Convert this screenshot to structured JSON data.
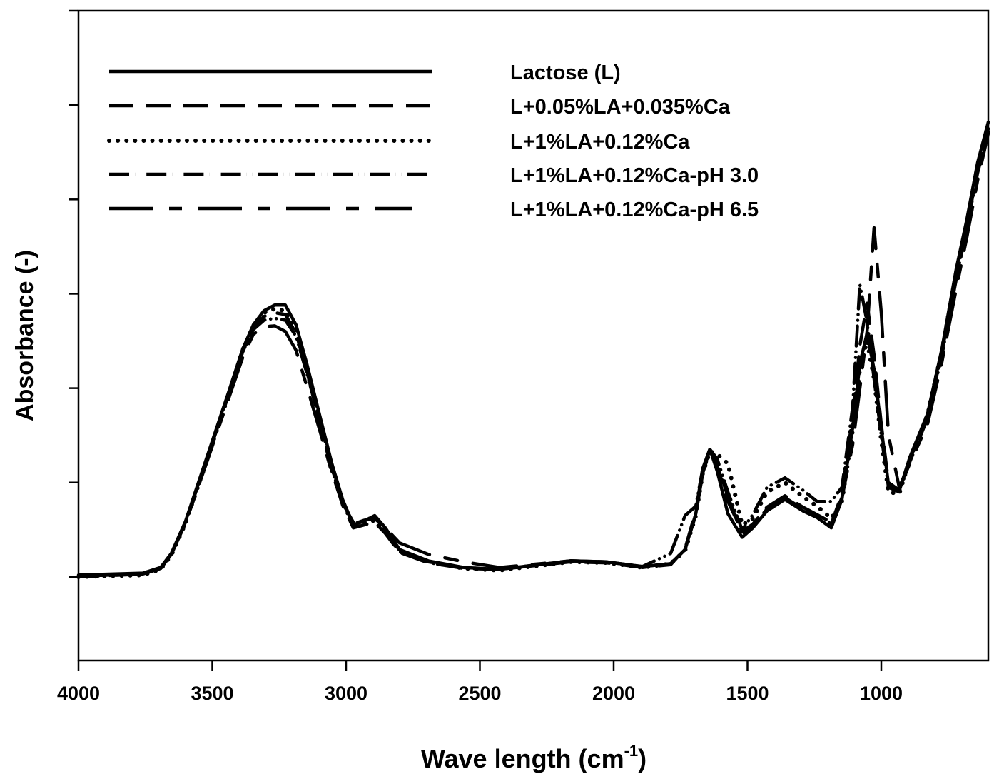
{
  "chart_data": {
    "type": "line",
    "title": "",
    "xlabel_pre": "Wave length (cm",
    "xlabel_sup": "-1",
    "xlabel_post": ")",
    "ylabel": "Absorbance (-)",
    "xlim": [
      4000,
      600
    ],
    "ylim": [
      -0.886,
      6.0
    ],
    "x_reversed": true,
    "x_ticks": [
      4000,
      3500,
      3000,
      2500,
      2000,
      1500,
      1000
    ],
    "x_tick_labels": [
      "4000",
      "3500",
      "3000",
      "2500",
      "2000",
      "1500",
      "1000"
    ],
    "y_ticks": [
      0,
      1,
      2,
      3,
      4,
      5,
      6
    ],
    "y_tick_labels_shown": false,
    "grid": false,
    "legend_position": "top-left",
    "line_color": "#000000",
    "x": [
      4000,
      3760,
      3693,
      3653,
      3600,
      3520,
      3440,
      3387,
      3347,
      3307,
      3267,
      3227,
      3187,
      3147,
      3093,
      3053,
      3013,
      2973,
      2933,
      2893,
      2853,
      2800,
      2693,
      2560,
      2427,
      2160,
      2027,
      1893,
      1787,
      1733,
      1693,
      1667,
      1640,
      1613,
      1573,
      1520,
      1480,
      1427,
      1360,
      1293,
      1240,
      1187,
      1147,
      1107,
      1080,
      1053,
      1027,
      1000,
      973,
      933,
      893,
      827,
      773,
      720,
      680,
      640,
      600
    ],
    "series": [
      {
        "name": "Lactose (L)",
        "style": "solid",
        "values": [
          0.02,
          0.04,
          0.1,
          0.25,
          0.59,
          1.27,
          1.95,
          2.41,
          2.67,
          2.82,
          2.88,
          2.88,
          2.67,
          2.26,
          1.65,
          1.2,
          0.82,
          0.55,
          0.59,
          0.65,
          0.52,
          0.29,
          0.17,
          0.1,
          0.08,
          0.17,
          0.16,
          0.11,
          0.14,
          0.29,
          0.67,
          1.12,
          1.35,
          1.12,
          0.67,
          0.42,
          0.52,
          0.7,
          0.82,
          0.7,
          0.63,
          0.52,
          0.82,
          1.58,
          2.26,
          2.58,
          2.2,
          1.58,
          0.98,
          0.91,
          1.27,
          1.73,
          2.42,
          3.26,
          3.79,
          4.39,
          4.82
        ]
      },
      {
        "name": "L+0.05%LA+0.035%Ca",
        "style": "dashed",
        "values": [
          0.01,
          0.03,
          0.09,
          0.24,
          0.58,
          1.25,
          1.92,
          2.38,
          2.63,
          2.76,
          2.8,
          2.78,
          2.58,
          2.18,
          1.58,
          1.12,
          0.76,
          0.52,
          0.55,
          0.58,
          0.46,
          0.26,
          0.15,
          0.09,
          0.08,
          0.16,
          0.15,
          0.1,
          0.13,
          0.3,
          0.7,
          1.15,
          1.36,
          1.18,
          0.8,
          0.48,
          0.56,
          0.74,
          0.86,
          0.74,
          0.66,
          0.56,
          0.88,
          1.7,
          2.45,
          2.9,
          2.35,
          1.62,
          1.0,
          0.92,
          1.25,
          1.7,
          2.38,
          3.2,
          3.72,
          4.3,
          4.75
        ]
      },
      {
        "name": "L+1%LA+0.12%Ca",
        "style": "dotted",
        "values": [
          0.0,
          0.02,
          0.08,
          0.23,
          0.57,
          1.24,
          1.92,
          2.4,
          2.66,
          2.8,
          2.84,
          2.82,
          2.62,
          2.2,
          1.62,
          1.16,
          0.8,
          0.54,
          0.57,
          0.6,
          0.48,
          0.27,
          0.16,
          0.09,
          0.07,
          0.16,
          0.15,
          0.1,
          0.14,
          0.28,
          0.65,
          1.1,
          1.33,
          1.3,
          1.2,
          0.55,
          0.62,
          0.9,
          1.0,
          0.85,
          0.75,
          0.62,
          0.8,
          1.55,
          2.2,
          2.5,
          2.1,
          1.45,
          0.9,
          0.88,
          1.25,
          1.72,
          2.4,
          3.22,
          3.75,
          4.35,
          4.8
        ]
      },
      {
        "name": "L+1%LA+0.12%Ca-pH 3.0",
        "style": "dash-dot-dot",
        "values": [
          0.0,
          0.03,
          0.09,
          0.24,
          0.58,
          1.25,
          1.93,
          2.38,
          2.62,
          2.72,
          2.74,
          2.72,
          2.55,
          2.16,
          1.6,
          1.15,
          0.8,
          0.56,
          0.6,
          0.62,
          0.5,
          0.28,
          0.16,
          0.1,
          0.08,
          0.17,
          0.16,
          0.11,
          0.25,
          0.65,
          0.75,
          1.15,
          1.35,
          1.25,
          0.9,
          0.5,
          0.66,
          0.95,
          1.05,
          0.92,
          0.8,
          0.8,
          0.95,
          1.8,
          3.1,
          2.7,
          2.1,
          1.5,
          0.95,
          0.9,
          1.22,
          1.68,
          2.35,
          3.15,
          3.7,
          4.28,
          4.72
        ]
      },
      {
        "name": "L+1%LA+0.12%Ca-pH 6.5",
        "style": "long-dash",
        "values": [
          0.01,
          0.03,
          0.09,
          0.24,
          0.57,
          1.22,
          1.88,
          2.32,
          2.57,
          2.65,
          2.66,
          2.6,
          2.4,
          2.02,
          1.5,
          1.1,
          0.78,
          0.58,
          0.62,
          0.62,
          0.52,
          0.36,
          0.24,
          0.16,
          0.1,
          0.17,
          0.16,
          0.11,
          0.14,
          0.29,
          0.66,
          1.1,
          1.34,
          1.2,
          0.85,
          0.45,
          0.54,
          0.72,
          0.84,
          0.72,
          0.66,
          0.58,
          0.84,
          1.4,
          2.0,
          2.6,
          3.7,
          2.8,
          1.5,
          0.95,
          1.2,
          1.62,
          2.28,
          3.05,
          3.6,
          4.2,
          4.7
        ]
      }
    ]
  }
}
